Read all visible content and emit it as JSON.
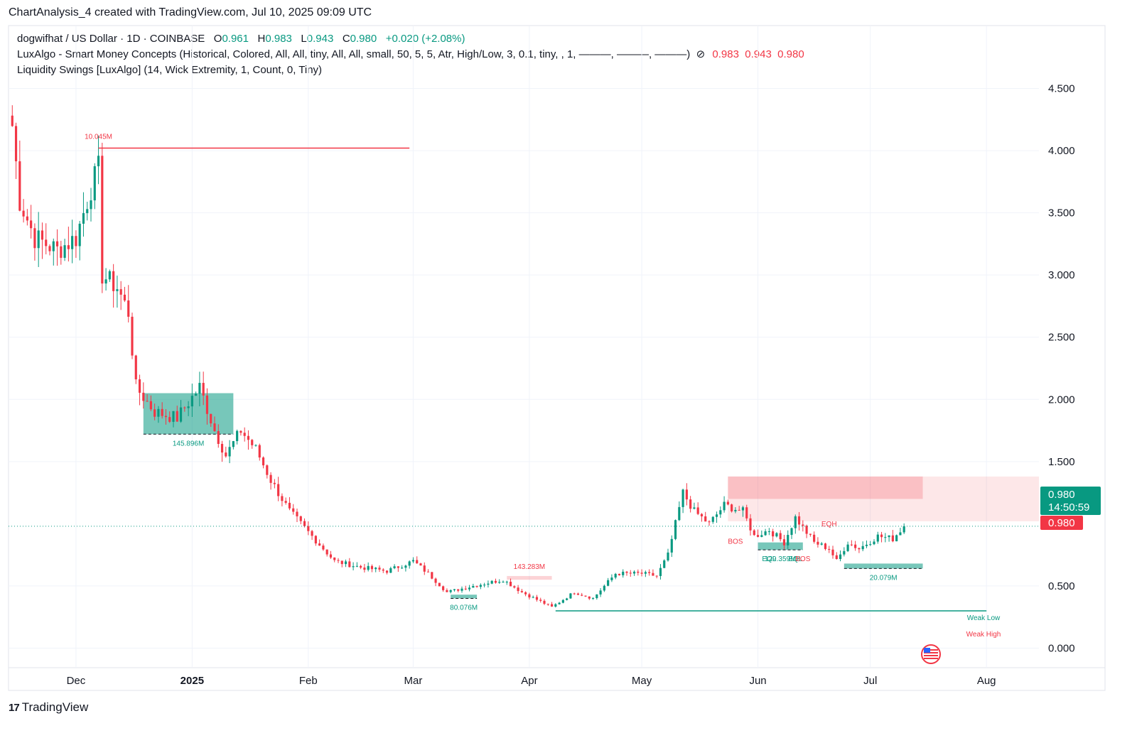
{
  "caption": "ChartAnalysis_4 created with TradingView.com, Jul 10, 2025 09:09 UTC",
  "legend": {
    "symbol": "dogwifhat / US Dollar · 1D · COINBASE",
    "open_label": "O",
    "open": "0.961",
    "high_label": "H",
    "high": "0.983",
    "low_label": "L",
    "low": "0.943",
    "close_label": "C",
    "close": "0.980",
    "change": "+0.020 (+2.08%)",
    "indicator1": "LuxAlgo - Smart Money Concepts (Historical, Colored, All, All, tiny, All, All, small, 50, 5, 5, Atr, High/Low, 3, 0.1, tiny, , 1, ———, ———, ———)",
    "indicator1_icon": "eye-slash-icon",
    "indicator1_values": [
      "0.983",
      "0.943",
      "0.980"
    ],
    "indicator2": "Liquidity Swings [LuxAlgo] (14, Wick Extremity, 1, Count, 0, Tiny)"
  },
  "brand": {
    "logo": "17",
    "name": "TradingView"
  },
  "colors": {
    "up": "#089981",
    "down": "#f23645",
    "grid": "#f0f3fa",
    "axis_text": "#131722",
    "price_tag_green": "#089981",
    "price_tag_red": "#f23645"
  },
  "price_tag": {
    "price": "0.980",
    "countdown": "14:50:59",
    "marker": "0.980"
  },
  "chart_data": {
    "type": "candlestick",
    "y_ticks": [
      "4.500",
      "4.000",
      "3.500",
      "3.000",
      "2.500",
      "2.000",
      "1.500",
      "0.500",
      "0.000"
    ],
    "ylim": [
      -0.1,
      4.6
    ],
    "x_ticks": [
      "Dec",
      "2025",
      "Feb",
      "Mar",
      "Apr",
      "May",
      "Jun",
      "Jul",
      "Aug"
    ],
    "x_tick_dates": [
      "2024-12-01",
      "2025-01-01",
      "2025-02-01",
      "2025-03-01",
      "2025-04-01",
      "2025-05-01",
      "2025-06-01",
      "2025-07-01",
      "2025-08-01"
    ],
    "xlim": [
      "2024-11-13",
      "2025-08-15"
    ],
    "last_price": 0.98,
    "ohlc_anchor_points": [
      {
        "date": "2024-11-14",
        "close": 4.2
      },
      {
        "date": "2024-11-16",
        "close": 3.6
      },
      {
        "date": "2024-11-20",
        "close": 3.3
      },
      {
        "date": "2024-11-26",
        "close": 3.2
      },
      {
        "date": "2024-12-01",
        "close": 3.3
      },
      {
        "date": "2024-12-05",
        "close": 3.7
      },
      {
        "date": "2024-12-07",
        "close": 3.85
      },
      {
        "date": "2024-12-08",
        "close": 3.0
      },
      {
        "date": "2024-12-12",
        "close": 2.9
      },
      {
        "date": "2024-12-15",
        "close": 2.7
      },
      {
        "date": "2024-12-17",
        "close": 2.1
      },
      {
        "date": "2024-12-22",
        "close": 1.9
      },
      {
        "date": "2024-12-28",
        "close": 1.85
      },
      {
        "date": "2025-01-03",
        "close": 2.1
      },
      {
        "date": "2025-01-07",
        "close": 1.75
      },
      {
        "date": "2025-01-10",
        "close": 1.55
      },
      {
        "date": "2025-01-14",
        "close": 1.75
      },
      {
        "date": "2025-01-18",
        "close": 1.6
      },
      {
        "date": "2025-01-22",
        "close": 1.35
      },
      {
        "date": "2025-01-27",
        "close": 1.1
      },
      {
        "date": "2025-02-02",
        "close": 0.9
      },
      {
        "date": "2025-02-08",
        "close": 0.7
      },
      {
        "date": "2025-02-15",
        "close": 0.65
      },
      {
        "date": "2025-02-22",
        "close": 0.62
      },
      {
        "date": "2025-03-01",
        "close": 0.7
      },
      {
        "date": "2025-03-05",
        "close": 0.6
      },
      {
        "date": "2025-03-10",
        "close": 0.45
      },
      {
        "date": "2025-03-17",
        "close": 0.5
      },
      {
        "date": "2025-03-25",
        "close": 0.55
      },
      {
        "date": "2025-03-30",
        "close": 0.45
      },
      {
        "date": "2025-04-07",
        "close": 0.33
      },
      {
        "date": "2025-04-13",
        "close": 0.45
      },
      {
        "date": "2025-04-18",
        "close": 0.4
      },
      {
        "date": "2025-04-24",
        "close": 0.6
      },
      {
        "date": "2025-05-01",
        "close": 0.6
      },
      {
        "date": "2025-05-05",
        "close": 0.58
      },
      {
        "date": "2025-05-08",
        "close": 0.75
      },
      {
        "date": "2025-05-10",
        "close": 1.0
      },
      {
        "date": "2025-05-12",
        "close": 1.25
      },
      {
        "date": "2025-05-15",
        "close": 1.1
      },
      {
        "date": "2025-05-19",
        "close": 1.0
      },
      {
        "date": "2025-05-23",
        "close": 1.15
      },
      {
        "date": "2025-05-28",
        "close": 1.1
      },
      {
        "date": "2025-05-31",
        "close": 0.9
      },
      {
        "date": "2025-06-04",
        "close": 0.95
      },
      {
        "date": "2025-06-08",
        "close": 0.85
      },
      {
        "date": "2025-06-11",
        "close": 1.05
      },
      {
        "date": "2025-06-16",
        "close": 0.85
      },
      {
        "date": "2025-06-20",
        "close": 0.8
      },
      {
        "date": "2025-06-22",
        "close": 0.7
      },
      {
        "date": "2025-06-25",
        "close": 0.85
      },
      {
        "date": "2025-06-28",
        "close": 0.8
      },
      {
        "date": "2025-07-03",
        "close": 0.9
      },
      {
        "date": "2025-07-07",
        "close": 0.88
      },
      {
        "date": "2025-07-10",
        "close": 0.98
      }
    ],
    "horizontal_levels": [
      {
        "label": "10.045M",
        "price": 4.02,
        "from": "2024-12-07",
        "to": "2025-02-28",
        "color": "#f23645"
      },
      {
        "label": "",
        "price": 0.3,
        "from": "2025-04-08",
        "to": "2025-08-01",
        "color": "#089981"
      }
    ],
    "zones": [
      {
        "label": "145.896M",
        "top": 2.05,
        "bottom": 1.72,
        "from": "2024-12-19",
        "to": "2025-01-12",
        "color": "#089981"
      },
      {
        "label": "143.283M",
        "top": 0.58,
        "bottom": 0.55,
        "from": "2025-03-26",
        "to": "2025-04-07",
        "color": "#f23645"
      },
      {
        "label": "80.076M",
        "top": 0.43,
        "bottom": 0.4,
        "from": "2025-03-11",
        "to": "2025-03-18",
        "color": "#089981"
      },
      {
        "label": "129.359M",
        "top": 0.85,
        "bottom": 0.79,
        "from": "2025-06-01",
        "to": "2025-06-13",
        "color": "#089981"
      },
      {
        "label": "20.079M",
        "top": 0.68,
        "bottom": 0.64,
        "from": "2025-06-24",
        "to": "2025-07-15",
        "color": "#089981"
      },
      {
        "label": "",
        "top": 1.38,
        "bottom": 1.2,
        "from": "2025-05-24",
        "to": "2025-07-15",
        "color": "#f23645"
      }
    ],
    "structure_labels": [
      {
        "text": "BOS",
        "date": "2025-05-26",
        "price": 0.84,
        "color": "#f23645"
      },
      {
        "text": "EQL",
        "date": "2025-06-04",
        "price": 0.7,
        "color": "#089981"
      },
      {
        "text": "EQL",
        "date": "2025-06-11",
        "price": 0.7,
        "color": "#089981"
      },
      {
        "text": "BOS",
        "date": "2025-06-13",
        "price": 0.7,
        "color": "#f23645"
      },
      {
        "text": "EQH",
        "date": "2025-06-20",
        "price": 0.98,
        "color": "#f23645"
      }
    ],
    "side_labels": [
      {
        "text": "Weak Low",
        "color": "#089981"
      },
      {
        "text": "Weak High",
        "color": "#f23645"
      }
    ]
  }
}
